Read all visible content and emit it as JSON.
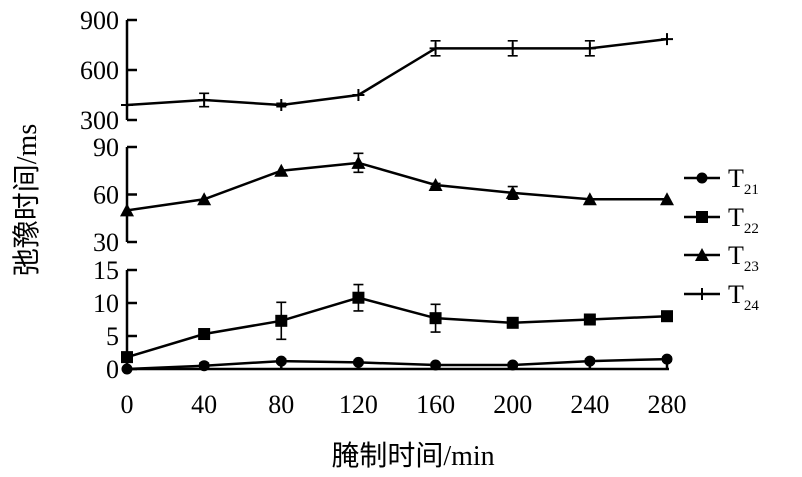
{
  "chart_data": {
    "type": "line",
    "xlabel": "腌制时间/min",
    "ylabel": "弛豫时间/ms",
    "x": [
      0,
      40,
      80,
      120,
      160,
      200,
      240,
      280
    ],
    "xticks": [
      "0",
      "40",
      "80",
      "120",
      "160",
      "200",
      "240",
      "280"
    ],
    "panels": [
      {
        "series_names": [
          "T24"
        ],
        "yticks": [
          "300",
          "600",
          "900"
        ],
        "ylim": [
          300,
          900
        ]
      },
      {
        "series_names": [
          "T23"
        ],
        "yticks": [
          "30",
          "60",
          "90"
        ],
        "ylim": [
          30,
          90
        ]
      },
      {
        "series_names": [
          "T22",
          "T21"
        ],
        "yticks": [
          "0",
          "5",
          "10",
          "15"
        ],
        "ylim": [
          0,
          15
        ]
      }
    ],
    "series": [
      {
        "name": "T21",
        "label_main": "T",
        "label_sub": "21",
        "marker": "circle",
        "values": [
          0.0,
          0.5,
          1.2,
          1.0,
          0.6,
          0.6,
          1.2,
          1.5
        ],
        "errors": [
          0.2,
          0.4,
          0.3,
          0.3,
          0.3,
          0.3,
          0.3,
          0.3
        ]
      },
      {
        "name": "T22",
        "label_main": "T",
        "label_sub": "22",
        "marker": "square",
        "values": [
          1.8,
          5.3,
          7.3,
          10.8,
          7.7,
          7.0,
          7.5,
          8.0
        ],
        "errors": [
          0.3,
          0.4,
          2.8,
          2.0,
          2.1,
          0.4,
          0.3,
          0.3
        ]
      },
      {
        "name": "T23",
        "label_main": "T",
        "label_sub": "23",
        "marker": "triangle",
        "values": [
          50,
          57,
          75,
          80,
          66,
          61,
          57,
          57
        ],
        "errors": [
          0.8,
          0.8,
          0.8,
          6.0,
          1.0,
          4.0,
          0.8,
          0.8
        ]
      },
      {
        "name": "T24",
        "label_main": "T",
        "label_sub": "24",
        "marker": "plus",
        "values": [
          390,
          420,
          390,
          450,
          730,
          730,
          730,
          785
        ],
        "errors": [
          5,
          40,
          10,
          5,
          45,
          45,
          45,
          5
        ]
      }
    ],
    "legend_position": "right",
    "grid": false
  }
}
